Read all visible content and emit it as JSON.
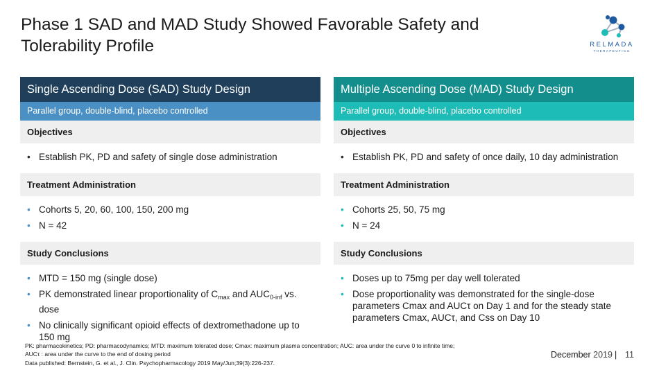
{
  "slide": {
    "title": "Phase 1 SAD and MAD Study Showed Favorable Safety and Tolerability Profile"
  },
  "logo": {
    "wordmark": "RELMADA",
    "subtitle": "THERAPEUTICS"
  },
  "sad": {
    "header": "Single Ascending Dose (SAD) Study Design",
    "subheader": "Parallel group, double-blind, placebo controlled",
    "objectives_label": "Objectives",
    "objective_1": "Establish PK, PD and safety of single dose administration",
    "treatment_label": "Treatment Administration",
    "treatment_1": "Cohorts 5, 20, 60, 100, 150, 200 mg",
    "treatment_2": "N = 42",
    "conclusions_label": "Study Conclusions",
    "conclusion_1": "MTD = 150 mg (single dose)",
    "conclusion_2_pre": "PK demonstrated linear proportionality of C",
    "conclusion_2_sub1": "max",
    "conclusion_2_mid": " and AUC",
    "conclusion_2_sub2": "0-inf",
    "conclusion_2_post": " vs. dose",
    "conclusion_3": "No clinically significant opioid effects of dextromethadone up to 150 mg"
  },
  "mad": {
    "header": "Multiple Ascending Dose (MAD) Study Design",
    "subheader": "Parallel group, double-blind, placebo controlled",
    "objectives_label": "Objectives",
    "objective_1": "Establish PK, PD and safety of once daily, 10 day administration",
    "treatment_label": "Treatment Administration",
    "treatment_1": "Cohorts 25, 50, 75 mg",
    "treatment_2": "N = 24",
    "conclusions_label": "Study Conclusions",
    "conclusion_1": "Doses up to 75mg per day well tolerated",
    "conclusion_2": "Dose proportionality was demonstrated for the single-dose parameters Cmax and AUCτ  on Day 1 and for the steady state parameters Cmax, AUCτ, and Css on Day 10"
  },
  "bullet": "•",
  "footer": {
    "note_1": "PK: pharmacokinetics; PD: pharmacodynamics; MTD: maximum tolerated dose; Cmax: maximum plasma concentration; AUC: area under the curve 0 to infinite time;",
    "note_2": "AUCτ : area under the curve to the end of dosing period",
    "note_3": "Data published: Bernstein, G. et al., J. Clin. Psychopharmacology 2019 May/Jun;39(3):226-237.",
    "month": "December",
    "year": "2019",
    "separator": "|",
    "page_number": "11"
  },
  "colors": {
    "sad_header": "#1f3f5b",
    "sad_subheader": "#4a90c4",
    "mad_header": "#138e8d",
    "mad_subheader": "#1ebcb6",
    "section_bg": "#efefef",
    "logo_blue": "#1e5aa0"
  }
}
